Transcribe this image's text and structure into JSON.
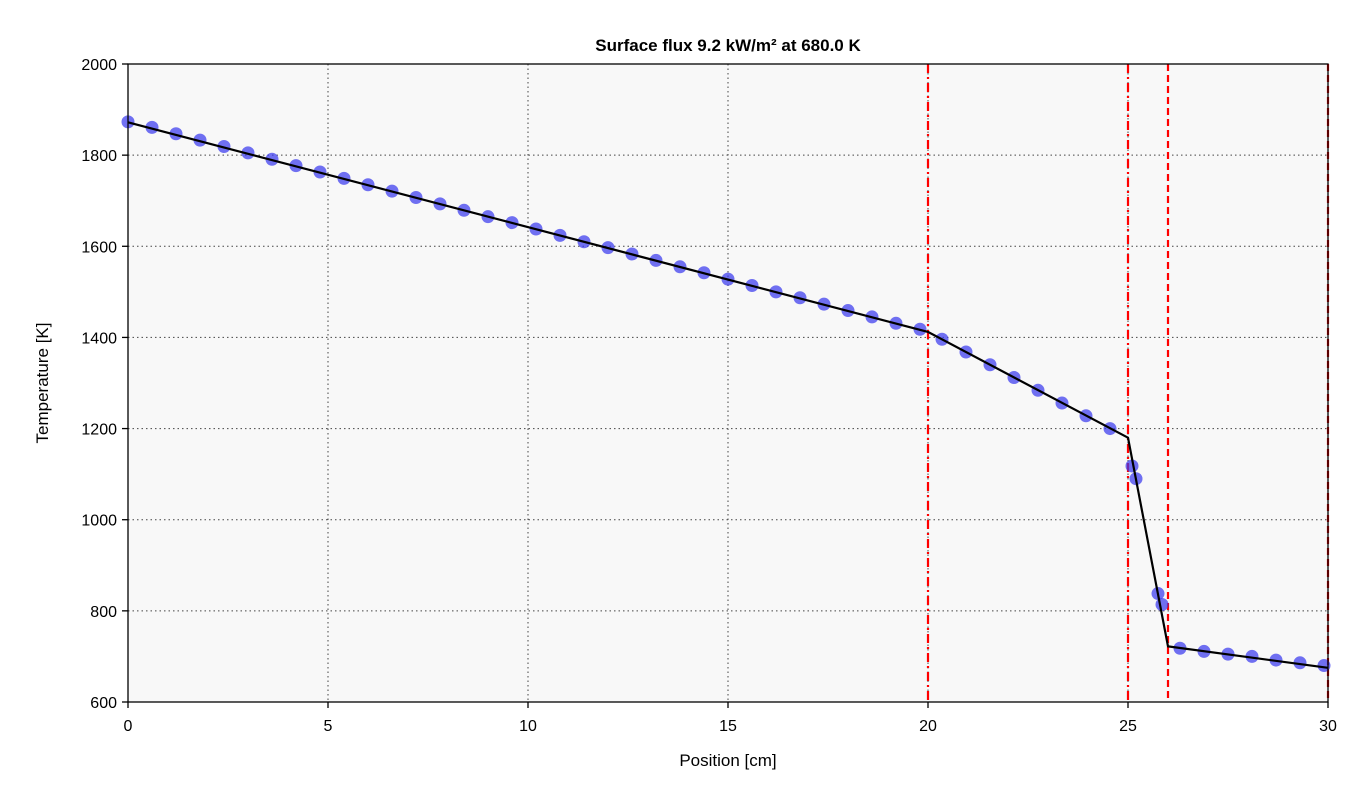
{
  "chart_data": {
    "type": "line",
    "title": "Surface flux 9.2 kW/m² at 680.0 K",
    "xlabel": "Position [cm]",
    "ylabel": "Temperature [K]",
    "xlim": [
      0,
      30
    ],
    "ylim": [
      600,
      2000
    ],
    "x_ticks": [
      0,
      5,
      10,
      15,
      20,
      25,
      30
    ],
    "y_ticks": [
      600,
      800,
      1000,
      1200,
      1400,
      1600,
      1800,
      2000
    ],
    "grid": true,
    "background": "#f8f8f8",
    "series": [
      {
        "style": "solid-line",
        "color": "#000000",
        "x": [
          0,
          20,
          25,
          26,
          30
        ],
        "y": [
          1872,
          1412,
          1180,
          722,
          675
        ]
      },
      {
        "style": "markers",
        "color": "#3a3aee",
        "x": [
          0,
          0.6,
          1.2,
          1.8,
          2.4,
          3.0,
          3.6,
          4.2,
          4.8,
          5.4,
          6.0,
          6.6,
          7.2,
          7.8,
          8.4,
          9.0,
          9.6,
          10.2,
          10.8,
          11.4,
          12.0,
          12.6,
          13.2,
          13.8,
          14.4,
          15.0,
          15.6,
          16.2,
          16.8,
          17.4,
          18.0,
          18.6,
          19.2,
          19.8,
          20.35,
          20.95,
          21.55,
          22.15,
          22.75,
          23.35,
          23.95,
          24.55,
          25.1,
          25.2,
          25.75,
          25.85,
          26.3,
          26.9,
          27.5,
          28.1,
          28.7,
          29.3,
          29.9
        ],
        "y": [
          1873,
          1861,
          1847,
          1833,
          1819,
          1805,
          1791,
          1777,
          1763,
          1749,
          1735,
          1721,
          1707,
          1693,
          1679,
          1665,
          1652,
          1638,
          1624,
          1610,
          1597,
          1583,
          1569,
          1555,
          1542,
          1528,
          1514,
          1500,
          1487,
          1473,
          1459,
          1445,
          1431,
          1418,
          1396,
          1368,
          1340,
          1312,
          1284,
          1256,
          1228,
          1200,
          1118,
          1090,
          838,
          814,
          718,
          711,
          705,
          700,
          692,
          686,
          680
        ]
      }
    ],
    "vertical_lines": [
      {
        "x": 20,
        "style": "dash-dot",
        "color": "#ff0000"
      },
      {
        "x": 25,
        "style": "dash-dot",
        "color": "#ff0000"
      },
      {
        "x": 26,
        "style": "dashed",
        "color": "#ff0000"
      },
      {
        "x": 30,
        "style": "dashed",
        "color": "#ff0000"
      }
    ]
  }
}
